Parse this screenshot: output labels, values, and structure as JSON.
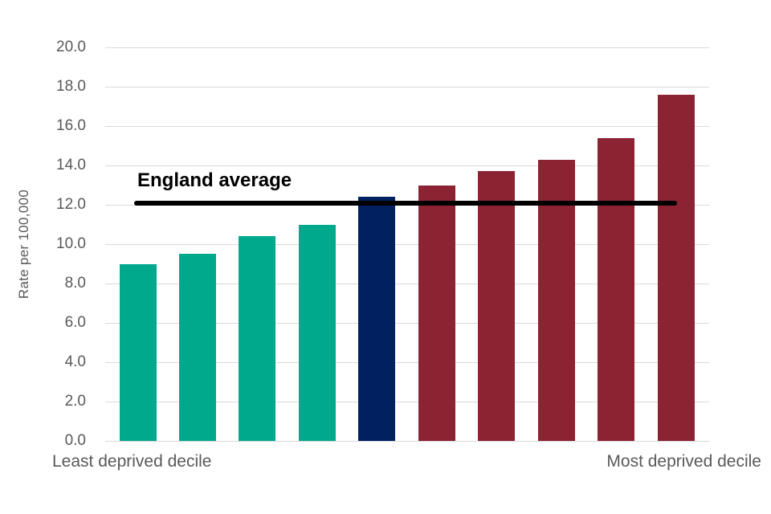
{
  "chart_data": {
    "type": "bar",
    "title": "",
    "ylabel": "Rate per 100,000",
    "xlabel": "",
    "ylim": [
      0,
      20
    ],
    "ytick_step": 2,
    "yticks": [
      "20.0",
      "18.0",
      "16.0",
      "14.0",
      "12.0",
      "10.0",
      "8.0",
      "6.0",
      "4.0",
      "2.0",
      "0.0"
    ],
    "grid": true,
    "legend": false,
    "categories": [
      "decile-1",
      "decile-2",
      "decile-3",
      "decile-4",
      "decile-5",
      "decile-6",
      "decile-7",
      "decile-8",
      "decile-9",
      "decile-10"
    ],
    "values": [
      9.0,
      9.5,
      10.4,
      11.0,
      12.4,
      13.0,
      13.7,
      14.3,
      15.4,
      17.6
    ],
    "bar_colors": [
      "#00a98c",
      "#00a98c",
      "#00a98c",
      "#00a98c",
      "#002060",
      "#8b2332",
      "#8b2332",
      "#8b2332",
      "#8b2332",
      "#8b2332"
    ],
    "reference_line": {
      "label": "England average",
      "value": 12.1,
      "color": "#000000"
    },
    "x_axis_labels": {
      "left": "Least deprived decile",
      "right": "Most deprived decile"
    }
  },
  "colors": {
    "teal_bar": "#00a98c",
    "navy_bar": "#002060",
    "maroon_bar": "#8b2332",
    "gridline": "#d9d9d9",
    "axis_text": "#595959",
    "reference_line": "#000000"
  }
}
